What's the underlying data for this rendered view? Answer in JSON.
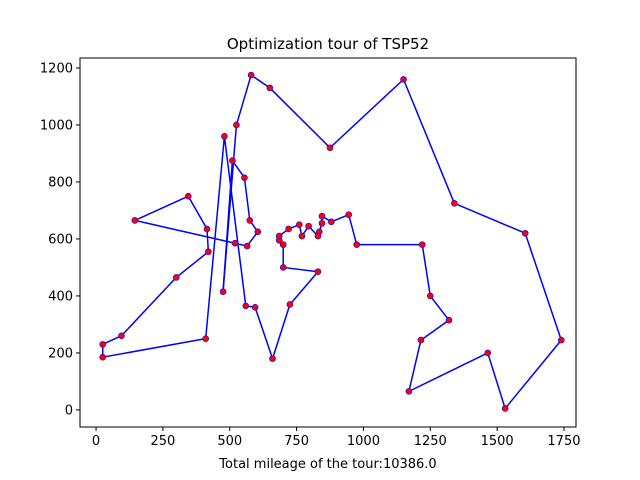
{
  "chart_data": {
    "type": "line",
    "title": "Optimization tour of TSP52",
    "xlabel": "Total mileage of the tour:10386.0",
    "ylabel": "",
    "xlim": [
      -60,
      1795
    ],
    "ylim": [
      -60,
      1235
    ],
    "xticks": [
      0,
      250,
      500,
      750,
      1000,
      1250,
      1500,
      1750
    ],
    "yticks": [
      0,
      200,
      400,
      600,
      800,
      1000,
      1200
    ],
    "line_color": "#0000ff",
    "marker_color": "#ff0000",
    "x": [
      565,
      25,
      345,
      945,
      845,
      880,
      25,
      525,
      580,
      650,
      1605,
      1220,
      1465,
      1530,
      845,
      725,
      145,
      415,
      510,
      560,
      300,
      520,
      480,
      835,
      975,
      1215,
      1320,
      1250,
      660,
      410,
      420,
      575,
      1150,
      700,
      685,
      685,
      770,
      795,
      720,
      760,
      475,
      95,
      875,
      700,
      555,
      830,
      1170,
      830,
      605,
      595,
      1340,
      1740
    ],
    "y": [
      575,
      185,
      750,
      685,
      655,
      660,
      230,
      1000,
      1175,
      1130,
      620,
      580,
      200,
      5,
      680,
      370,
      665,
      635,
      875,
      365,
      465,
      585,
      960,
      625,
      580,
      245,
      315,
      400,
      180,
      250,
      555,
      665,
      1160,
      580,
      595,
      610,
      610,
      645,
      635,
      650,
      415,
      260,
      920,
      500,
      815,
      485,
      65,
      610,
      625,
      360,
      725,
      245
    ],
    "tour": [
      0,
      48,
      31,
      44,
      18,
      40,
      7,
      8,
      9,
      42,
      32,
      50,
      10,
      51,
      13,
      12,
      46,
      25,
      26,
      27,
      11,
      24,
      3,
      5,
      14,
      4,
      23,
      47,
      37,
      36,
      39,
      38,
      35,
      34,
      33,
      43,
      45,
      15,
      28,
      49,
      19,
      22,
      29,
      1,
      6,
      41,
      20,
      30,
      17,
      2,
      16,
      21,
      0
    ]
  }
}
